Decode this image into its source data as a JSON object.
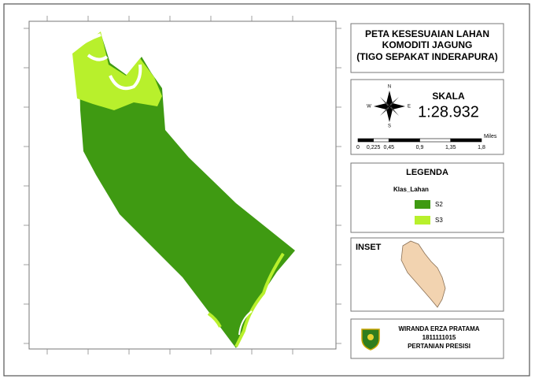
{
  "map": {
    "title": [
      "PETA KESESUAIAN LAHAN",
      "KOMODITI JAGUNG",
      "(TIGO SEPAKAT INDERAPURA)"
    ]
  },
  "scale": {
    "heading": "SKALA",
    "ratio": "1:28.932",
    "unit": "Miles",
    "ticks": [
      "0",
      "0,225",
      "0,45",
      "0,9",
      "1,35",
      "1,8"
    ]
  },
  "compass": {
    "north": "N",
    "east": "E",
    "south": "S",
    "west": "W"
  },
  "legend": {
    "heading": "LEGENDA",
    "field": "Klas_Lahan",
    "classes": [
      {
        "label": "S2",
        "color": "#3f9a12"
      },
      {
        "label": "S3",
        "color": "#b8f02c"
      }
    ]
  },
  "inset": {
    "heading": "INSET",
    "color": "#f2d3b0"
  },
  "credits": {
    "name": "WIRANDA ERZA PRATAMA",
    "id": "1811111015",
    "program": "PERTANIAN PRESISI"
  }
}
